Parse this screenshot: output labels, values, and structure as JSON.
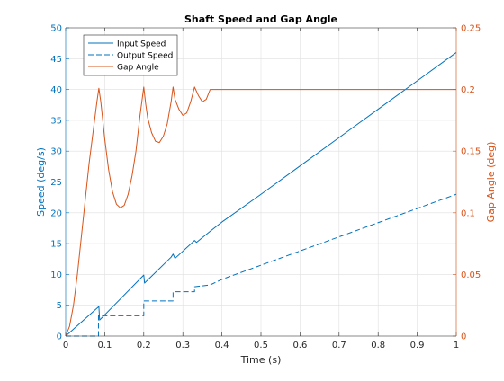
{
  "chart_data": {
    "type": "line",
    "title": "Shaft Speed and Gap Angle",
    "xlabel": "Time (s)",
    "ylabel_left": "Speed (deg/s)",
    "ylabel_right": "Gap Angle (deg)",
    "xlim": [
      0,
      1
    ],
    "ylim_left": [
      0,
      50
    ],
    "ylim_right": [
      0,
      0.25
    ],
    "x_ticks": [
      "0",
      "0.1",
      "0.2",
      "0.3",
      "0.4",
      "0.5",
      "0.6",
      "0.7",
      "0.8",
      "0.9",
      "1"
    ],
    "y_left_ticks": [
      "0",
      "5",
      "10",
      "15",
      "20",
      "25",
      "30",
      "35",
      "40",
      "45",
      "50"
    ],
    "y_right_ticks": [
      "0",
      "0.05",
      "0.1",
      "0.15",
      "0.2",
      "0.25"
    ],
    "grid": true,
    "legend_position": "top-left",
    "colors": {
      "left_axis": "#0072bd",
      "right_axis": "#d95319",
      "text": "#262626",
      "grid": "#dfdfdf"
    },
    "series": [
      {
        "name": "Input Speed",
        "axis": "left",
        "style": "solid",
        "color": "#0072bd",
        "points": [
          [
            0,
            0
          ],
          [
            0.085,
            4.8
          ],
          [
            0.087,
            2.6
          ],
          [
            0.2,
            9.9
          ],
          [
            0.202,
            8.6
          ],
          [
            0.27,
            12.8
          ],
          [
            0.275,
            13.3
          ],
          [
            0.28,
            12.6
          ],
          [
            0.33,
            15.5
          ],
          [
            0.335,
            15.2
          ],
          [
            0.37,
            17.0
          ],
          [
            0.4,
            18.5
          ],
          [
            0.5,
            23.0
          ],
          [
            0.6,
            27.6
          ],
          [
            0.7,
            32.2
          ],
          [
            0.8,
            36.8
          ],
          [
            0.9,
            41.4
          ],
          [
            1.0,
            46.0
          ]
        ]
      },
      {
        "name": "Output Speed",
        "axis": "left",
        "style": "dashed",
        "color": "#0072bd",
        "points": [
          [
            0,
            0
          ],
          [
            0.084,
            0
          ],
          [
            0.084,
            3.3
          ],
          [
            0.2,
            3.3
          ],
          [
            0.2,
            5.7
          ],
          [
            0.275,
            5.7
          ],
          [
            0.275,
            7.2
          ],
          [
            0.33,
            7.2
          ],
          [
            0.33,
            8.0
          ],
          [
            0.37,
            8.3
          ],
          [
            0.4,
            9.2
          ],
          [
            0.5,
            11.5
          ],
          [
            0.6,
            13.8
          ],
          [
            0.7,
            16.1
          ],
          [
            0.8,
            18.4
          ],
          [
            0.9,
            20.7
          ],
          [
            1.0,
            23.0
          ]
        ]
      },
      {
        "name": "Gap Angle",
        "axis": "right",
        "style": "solid",
        "color": "#d95319",
        "points": [
          [
            0,
            0
          ],
          [
            0.01,
            0.008
          ],
          [
            0.02,
            0.025
          ],
          [
            0.03,
            0.05
          ],
          [
            0.04,
            0.08
          ],
          [
            0.05,
            0.11
          ],
          [
            0.06,
            0.14
          ],
          [
            0.07,
            0.165
          ],
          [
            0.08,
            0.19
          ],
          [
            0.085,
            0.201
          ],
          [
            0.09,
            0.19
          ],
          [
            0.1,
            0.16
          ],
          [
            0.11,
            0.135
          ],
          [
            0.12,
            0.117
          ],
          [
            0.13,
            0.107
          ],
          [
            0.14,
            0.104
          ],
          [
            0.15,
            0.106
          ],
          [
            0.16,
            0.115
          ],
          [
            0.17,
            0.13
          ],
          [
            0.18,
            0.15
          ],
          [
            0.19,
            0.178
          ],
          [
            0.2,
            0.202
          ],
          [
            0.205,
            0.188
          ],
          [
            0.21,
            0.177
          ],
          [
            0.22,
            0.165
          ],
          [
            0.23,
            0.158
          ],
          [
            0.24,
            0.157
          ],
          [
            0.25,
            0.162
          ],
          [
            0.26,
            0.172
          ],
          [
            0.27,
            0.19
          ],
          [
            0.275,
            0.202
          ],
          [
            0.28,
            0.192
          ],
          [
            0.29,
            0.184
          ],
          [
            0.3,
            0.179
          ],
          [
            0.31,
            0.181
          ],
          [
            0.32,
            0.19
          ],
          [
            0.33,
            0.202
          ],
          [
            0.34,
            0.195
          ],
          [
            0.35,
            0.19
          ],
          [
            0.36,
            0.192
          ],
          [
            0.37,
            0.2
          ],
          [
            0.38,
            0.2
          ],
          [
            1.0,
            0.2
          ]
        ]
      }
    ]
  }
}
